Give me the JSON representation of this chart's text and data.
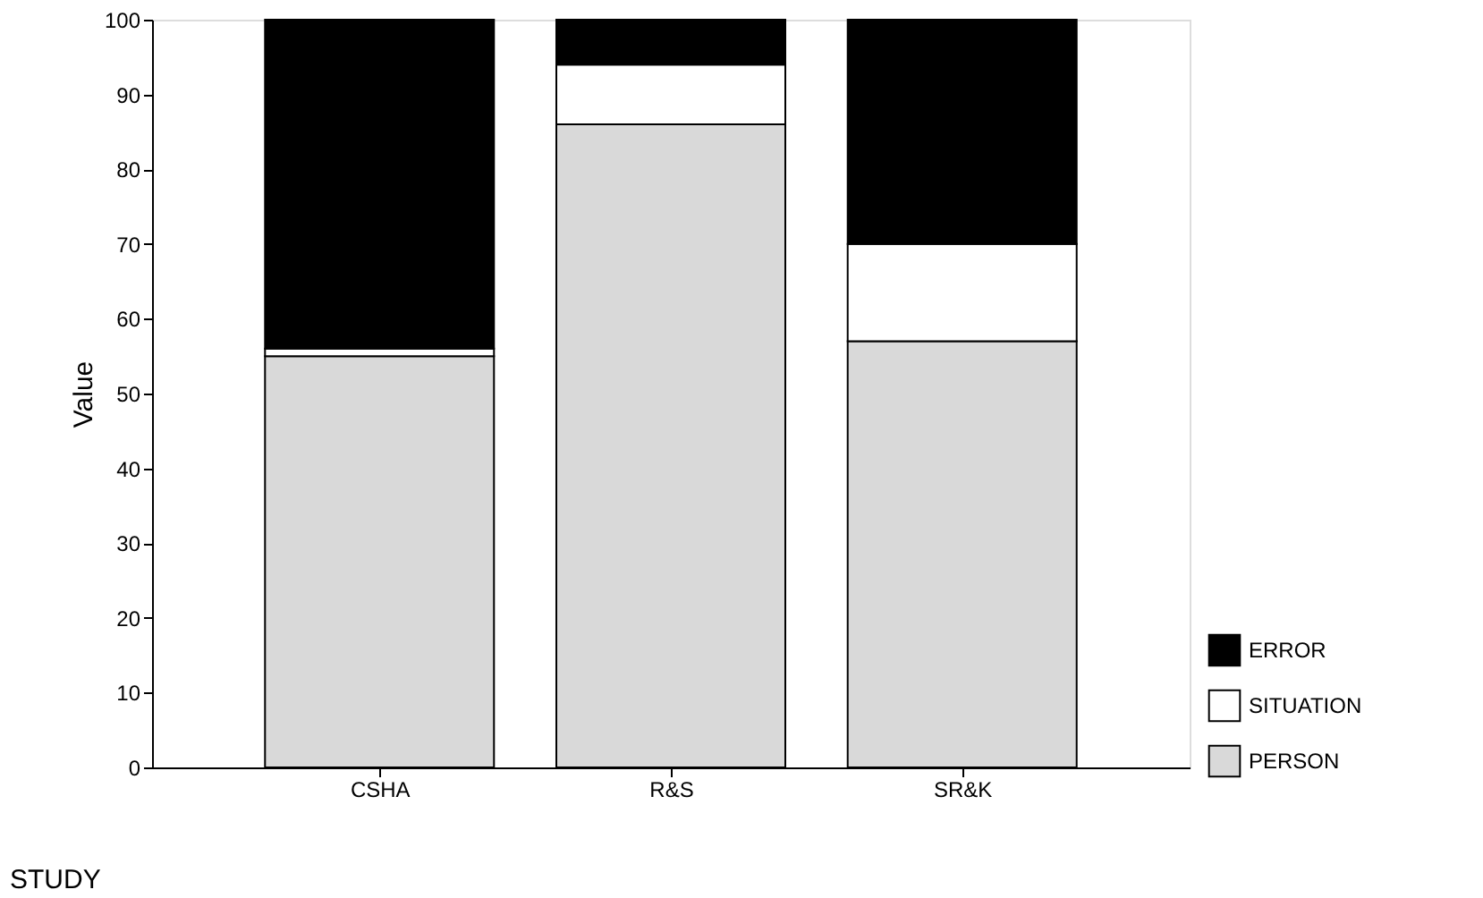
{
  "chart_data": {
    "type": "bar",
    "stacked": true,
    "categories": [
      "CSHA",
      "R&S",
      "SR&K"
    ],
    "series": [
      {
        "name": "PERSON",
        "color": "#d9d9d9",
        "values": [
          55,
          86,
          57
        ]
      },
      {
        "name": "SITUATION",
        "color": "#ffffff",
        "values": [
          1,
          8,
          13
        ]
      },
      {
        "name": "ERROR",
        "color": "#000000",
        "values": [
          44,
          6,
          30
        ]
      }
    ],
    "xlabel": "STUDY",
    "ylabel": "Value",
    "ylim": [
      0,
      100
    ],
    "yticks": [
      0,
      10,
      20,
      30,
      40,
      50,
      60,
      70,
      80,
      90,
      100
    ],
    "grid": false,
    "legend": "bottom right"
  }
}
